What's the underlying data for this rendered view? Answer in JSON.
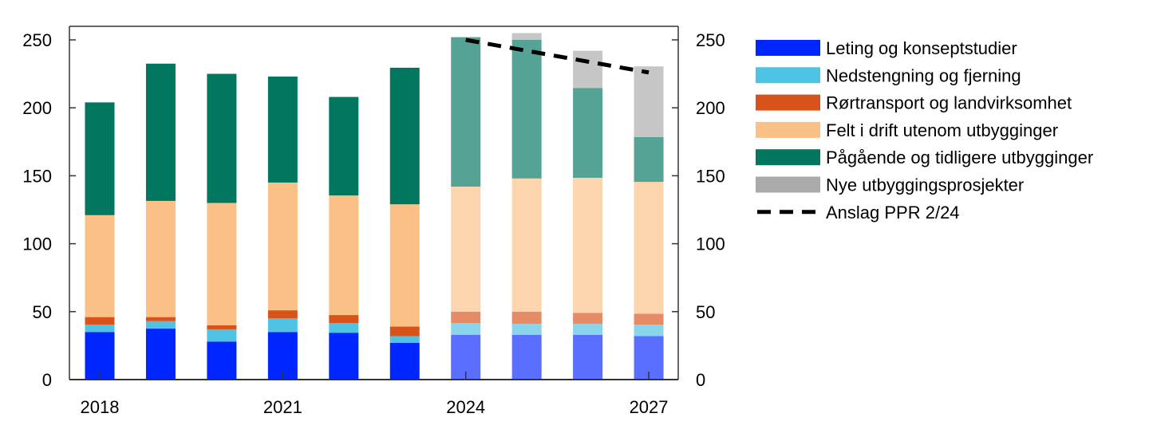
{
  "chart_data": {
    "type": "bar",
    "stacked": true,
    "title": "",
    "xlabel": "",
    "ylabel": "",
    "ylim": [
      0,
      250
    ],
    "yticks": [
      0,
      50,
      100,
      150,
      200,
      250
    ],
    "categories": [
      "2018",
      "2019",
      "2020",
      "2021",
      "2022",
      "2023",
      "2024",
      "2025",
      "2026",
      "2027"
    ],
    "xtick_labels": [
      "2018",
      "2021",
      "2024",
      "2027"
    ],
    "forecast_from": "2024",
    "legend_position": "right",
    "series": [
      {
        "name": "Leting og konseptstudier",
        "color": "#0026ff",
        "forecast_color": "#5a6eff",
        "values": [
          35,
          37.5,
          28,
          35,
          34.5,
          27,
          33,
          33,
          33,
          32
        ]
      },
      {
        "name": "Nedstengning og fjerning",
        "color": "#4fc3e3",
        "forecast_color": "#8bd5ec",
        "values": [
          5.5,
          5.5,
          9,
          10,
          7,
          5,
          8.5,
          8,
          8,
          8.5
        ]
      },
      {
        "name": "Rørtransport og landvirksomhet",
        "color": "#d8531a",
        "forecast_color": "#e58c66",
        "values": [
          5.5,
          3,
          3,
          6,
          6,
          7,
          8.5,
          9,
          8,
          8
        ]
      },
      {
        "name": "Felt i drift utenom utbygginger",
        "color": "#fbc085",
        "forecast_color": "#fcd5ae",
        "values": [
          75,
          85.5,
          90,
          94,
          88,
          90,
          92,
          98,
          99.5,
          97
        ]
      },
      {
        "name": "Pågående og tidligere utbygginger",
        "color": "#00775e",
        "forecast_color": "#54a394",
        "values": [
          83,
          101,
          95,
          78,
          72.5,
          100.5,
          110,
          102,
          66,
          33
        ]
      },
      {
        "name": "Nye utbyggingsprosjekter",
        "color": "#aaaaaa",
        "forecast_color": "#c6c6c6",
        "values": [
          0,
          0,
          0,
          0,
          0,
          0,
          0,
          5,
          27.5,
          52
        ]
      }
    ],
    "line": {
      "name": "Anslag PPR 2/24",
      "color": "#000000",
      "x": [
        "2024",
        "2025",
        "2026",
        "2027"
      ],
      "values": [
        250,
        242,
        234,
        226
      ]
    }
  }
}
